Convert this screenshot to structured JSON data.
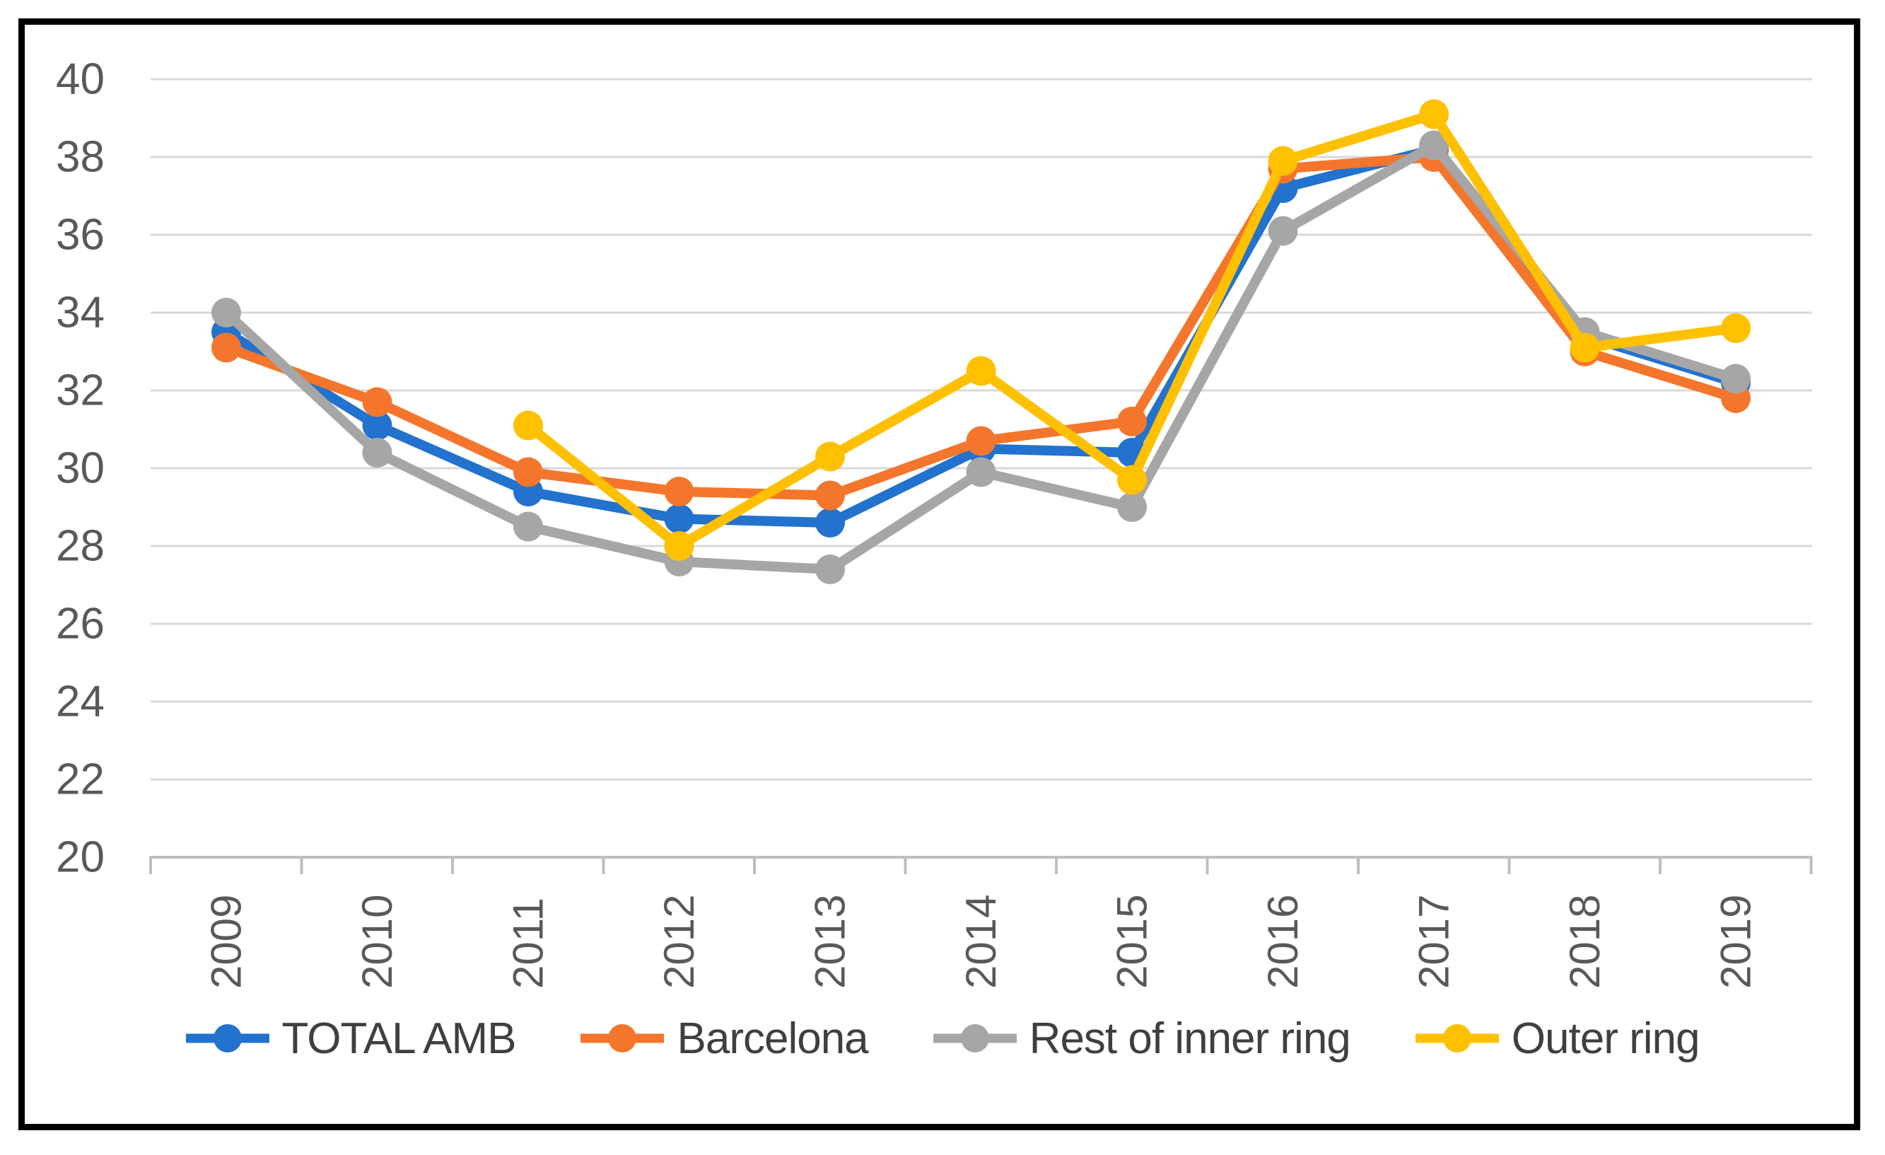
{
  "figure": {
    "background": "#ffffff",
    "frame_color": "#000000"
  },
  "chart_data": {
    "type": "line",
    "title": "",
    "xlabel": "",
    "ylabel": "",
    "categories": [
      "2009",
      "2010",
      "2011",
      "2012",
      "2013",
      "2014",
      "2015",
      "2016",
      "2017",
      "2018",
      "2019"
    ],
    "series": [
      {
        "name": "TOTAL AMB",
        "color": "#2272CE",
        "values": [
          33.5,
          31.1,
          29.4,
          28.7,
          28.6,
          30.5,
          30.4,
          37.2,
          38.2,
          33.4,
          32.2
        ]
      },
      {
        "name": "Barcelona",
        "color": "#F4762C",
        "values": [
          33.1,
          31.7,
          29.9,
          29.4,
          29.3,
          30.7,
          31.2,
          37.7,
          38.0,
          33.0,
          31.8
        ]
      },
      {
        "name": "Rest of inner ring",
        "color": "#A6A6A6",
        "values": [
          34.0,
          30.4,
          28.5,
          27.6,
          27.4,
          29.9,
          29.0,
          36.1,
          38.3,
          33.5,
          32.3
        ]
      },
      {
        "name": "Outer ring",
        "color": "#FFC000",
        "values": [
          null,
          null,
          31.1,
          28.0,
          30.3,
          32.5,
          29.7,
          37.9,
          39.1,
          33.1,
          33.6
        ]
      }
    ],
    "ylim": [
      20,
      40
    ],
    "ytick_step": 2,
    "y_tick_labels": [
      "20",
      "22",
      "24",
      "26",
      "28",
      "30",
      "32",
      "34",
      "36",
      "38",
      "40"
    ],
    "grid": true,
    "legend_position": "bottom",
    "marker_style": "circle",
    "gridline_color": "#D9D9D9",
    "axis_line_color": "#BFBFBF",
    "tick_label_color": "#595959",
    "legend_text_color": "#3F3F3F"
  }
}
